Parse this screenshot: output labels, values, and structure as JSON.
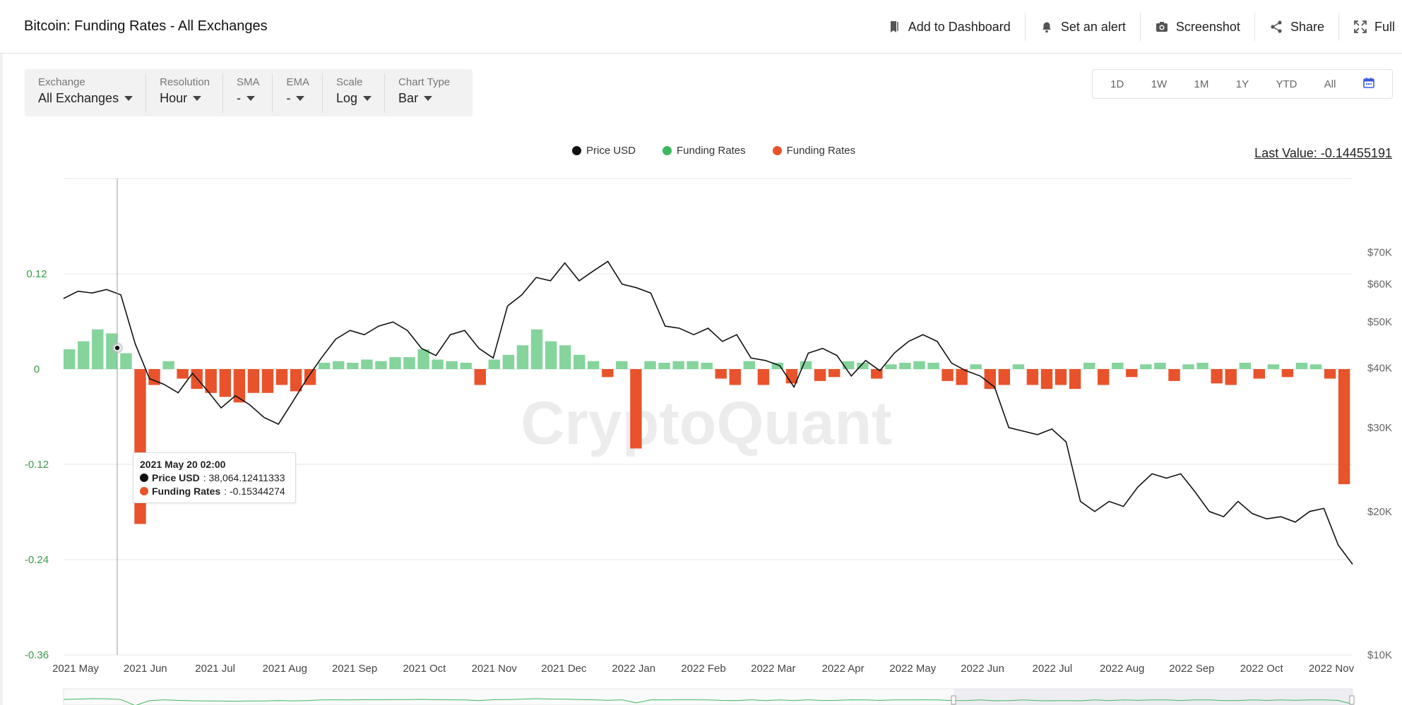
{
  "header": {
    "title": "Bitcoin: Funding Rates - All Exchanges",
    "actions": {
      "dashboard": "Add to Dashboard",
      "alert": "Set an alert",
      "screenshot": "Screenshot",
      "share": "Share",
      "full": "Full"
    }
  },
  "filters": {
    "exchange": {
      "label": "Exchange",
      "value": "All Exchanges"
    },
    "resolution": {
      "label": "Resolution",
      "value": "Hour"
    },
    "sma": {
      "label": "SMA",
      "value": "-"
    },
    "ema": {
      "label": "EMA",
      "value": "-"
    },
    "scale": {
      "label": "Scale",
      "value": "Log"
    },
    "chart_type": {
      "label": "Chart Type",
      "value": "Bar"
    }
  },
  "ranges": [
    "1D",
    "1W",
    "1M",
    "1Y",
    "YTD",
    "All"
  ],
  "legend": {
    "price": "Price USD",
    "funding_pos": "Funding Rates",
    "funding_neg": "Funding Rates"
  },
  "last_value": "Last Value: -0.14455191",
  "watermark": "CryptoQuant",
  "tooltip": {
    "date": "2021 May 20 02:00",
    "price_label": "Price USD",
    "price_value": ": 38,064.12411333",
    "funding_label": "Funding Rates",
    "funding_value": ": -0.15344274"
  },
  "colors": {
    "price": "#111111",
    "positive": "#84d49c",
    "negative": "#e8532b",
    "left_axis": "#3a9a4a"
  },
  "chart_data": {
    "type": "bar",
    "title": "Bitcoin: Funding Rates - All Exchanges",
    "x_ticks": [
      "2021 May",
      "2021 Jun",
      "2021 Jul",
      "2021 Aug",
      "2021 Sep",
      "2021 Oct",
      "2021 Nov",
      "2021 Dec",
      "2022 Jan",
      "2022 Feb",
      "2022 Mar",
      "2022 Apr",
      "2022 May",
      "2022 Jun",
      "2022 Jul",
      "2022 Aug",
      "2022 Sep",
      "2022 Oct",
      "2022 Nov"
    ],
    "y_left": {
      "ticks": [
        "0.12",
        "0",
        "-0.12",
        "-0.24",
        "-0.36"
      ],
      "range": [
        -0.36,
        0.24
      ]
    },
    "y_right": {
      "scale": "log",
      "ticks": [
        "$70K",
        "$60K",
        "$50K",
        "$40K",
        "$30K",
        "$20K",
        "$10K"
      ],
      "range": [
        10000,
        100000
      ]
    },
    "series": [
      {
        "name": "Price USD",
        "type": "line",
        "values": [
          56000,
          58000,
          57500,
          58500,
          57000,
          45000,
          38000,
          37000,
          35500,
          39000,
          36000,
          33000,
          35000,
          33500,
          31500,
          30500,
          34000,
          38000,
          42000,
          46000,
          48000,
          47000,
          49000,
          50000,
          48000,
          44000,
          42500,
          47000,
          48000,
          44000,
          42000,
          54000,
          57000,
          62000,
          61000,
          66500,
          61000,
          64000,
          67000,
          60000,
          59000,
          57500,
          49000,
          48500,
          47000,
          48500,
          45500,
          47000,
          42000,
          41500,
          40500,
          36500,
          43000,
          44000,
          42500,
          38500,
          41500,
          39500,
          43000,
          45500,
          47000,
          45500,
          41000,
          39500,
          38500,
          36500,
          30000,
          29500,
          29000,
          29800,
          28000,
          21000,
          20000,
          21000,
          20500,
          22500,
          24000,
          23500,
          24000,
          22000,
          20000,
          19500,
          21000,
          19800,
          19300,
          19500,
          19000,
          20000,
          20300,
          17000,
          15500
        ]
      },
      {
        "name": "Funding Rates",
        "type": "bar",
        "values": [
          0.025,
          0.035,
          0.05,
          0.045,
          0.02,
          -0.195,
          -0.02,
          0.01,
          -0.012,
          -0.025,
          -0.03,
          -0.035,
          -0.042,
          -0.03,
          -0.03,
          -0.02,
          -0.028,
          -0.02,
          0.008,
          0.01,
          0.008,
          0.012,
          0.01,
          0.015,
          0.015,
          0.025,
          0.012,
          0.01,
          0.008,
          -0.02,
          0.012,
          0.018,
          0.03,
          0.05,
          0.035,
          0.03,
          0.018,
          0.01,
          -0.01,
          0.01,
          -0.1,
          0.01,
          0.008,
          0.01,
          0.01,
          0.008,
          -0.012,
          -0.02,
          0.01,
          -0.02,
          0.008,
          -0.018,
          0.01,
          -0.015,
          -0.01,
          0.01,
          0.008,
          -0.012,
          0.006,
          0.008,
          0.01,
          0.008,
          -0.015,
          -0.02,
          0.006,
          -0.025,
          -0.02,
          0.006,
          -0.02,
          -0.025,
          -0.02,
          -0.025,
          0.008,
          -0.02,
          0.008,
          -0.01,
          0.006,
          0.008,
          -0.015,
          0.006,
          0.008,
          -0.018,
          -0.02,
          0.008,
          -0.012,
          0.006,
          -0.01,
          0.008,
          0.006,
          -0.012,
          -0.145
        ]
      }
    ],
    "legend_position": "top-center"
  }
}
